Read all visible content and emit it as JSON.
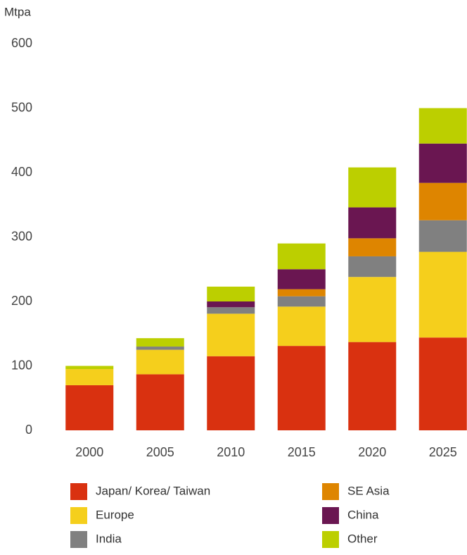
{
  "chart_data": {
    "type": "stacked_bar",
    "y_label": "Mtpa",
    "categories": [
      "2000",
      "2005",
      "2010",
      "2015",
      "2020",
      "2025"
    ],
    "series": [
      {
        "name": "Japan/ Korea/ Taiwan",
        "color": "#d93110",
        "values": [
          70,
          87,
          115,
          131,
          137,
          144
        ]
      },
      {
        "name": "Europe",
        "color": "#f5cf1c",
        "values": [
          25,
          38,
          66,
          61,
          101,
          133
        ]
      },
      {
        "name": "India",
        "color": "#808080",
        "values": [
          0,
          5,
          10,
          16,
          32,
          49
        ]
      },
      {
        "name": "SE Asia",
        "color": "#de8500",
        "values": [
          0,
          0,
          0,
          11,
          28,
          58
        ]
      },
      {
        "name": "China",
        "color": "#6a1651",
        "values": [
          0,
          0,
          9,
          31,
          48,
          61
        ]
      },
      {
        "name": "Other",
        "color": "#bccf00",
        "values": [
          5,
          13,
          23,
          40,
          62,
          55
        ]
      }
    ],
    "ylim": [
      0,
      600
    ],
    "yticks": [
      0,
      100,
      200,
      300,
      400,
      500,
      600
    ],
    "grid": false
  }
}
